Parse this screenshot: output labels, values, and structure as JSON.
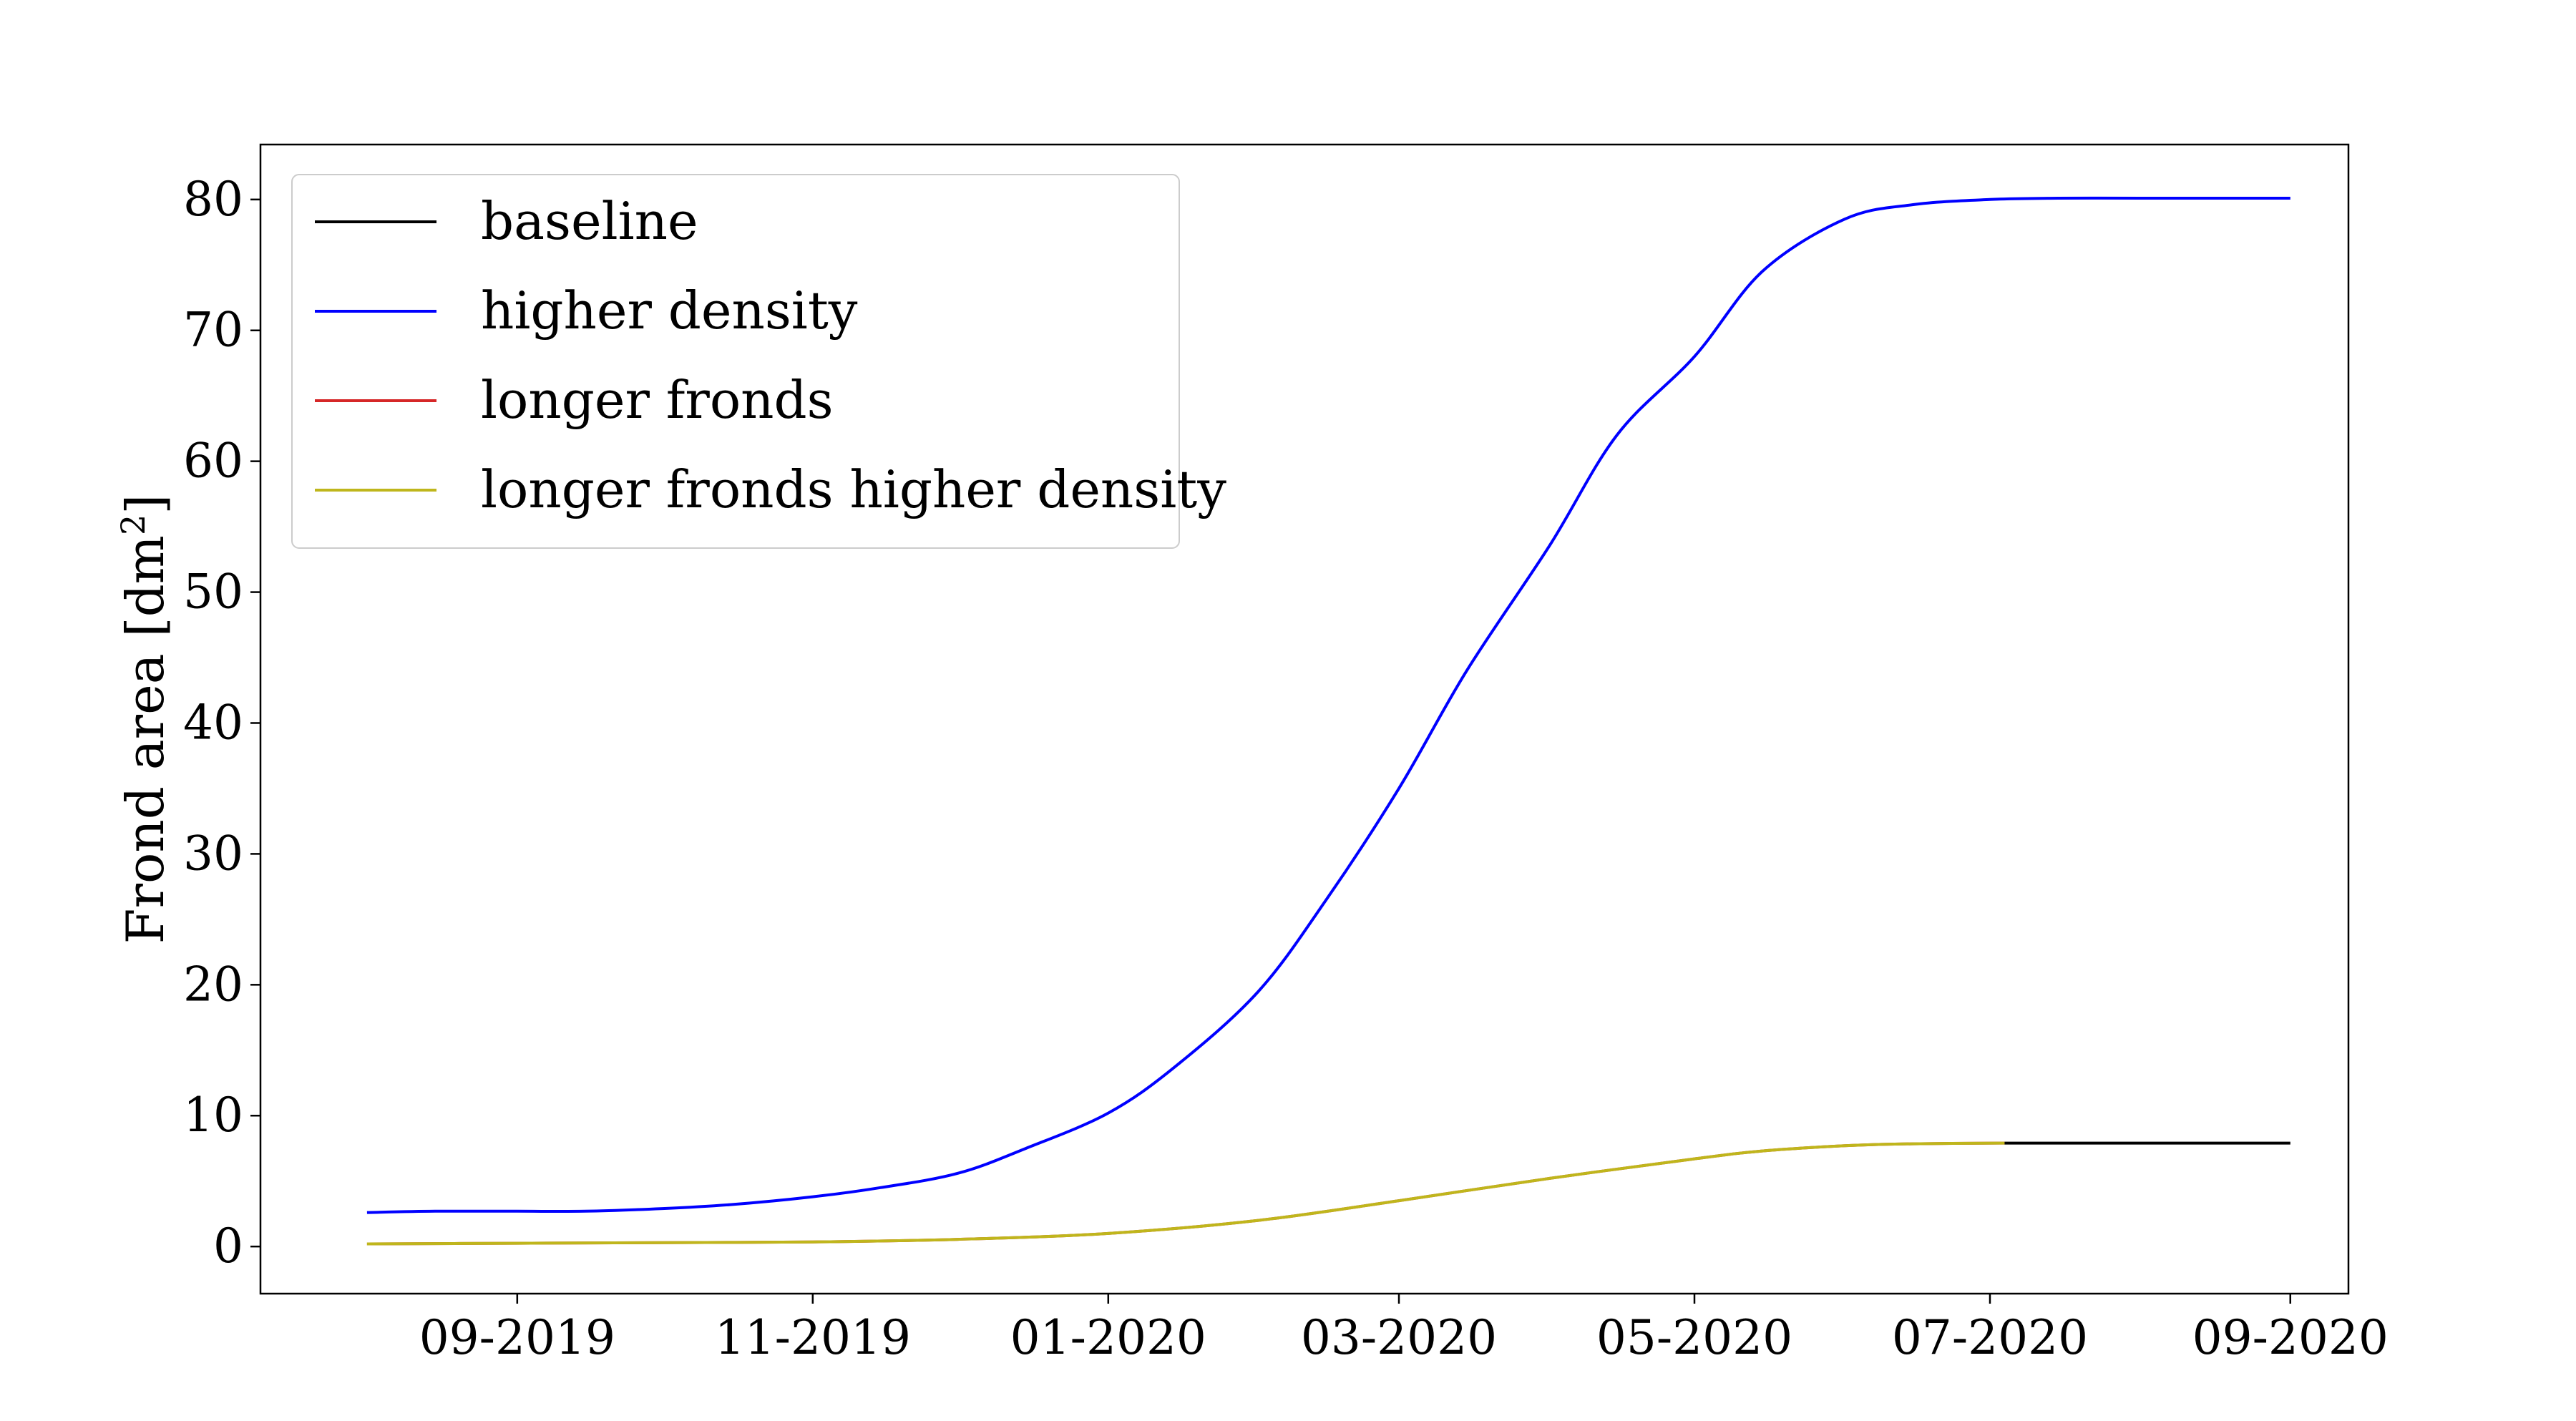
{
  "chart_data": {
    "type": "line",
    "title": "",
    "xlabel": "",
    "ylabel": "Frond area [dm",
    "ylabel_sup": "2",
    "ylabel_close": "]",
    "ylim": [
      -3.6,
      84.2
    ],
    "xlim": [
      "2019-07-10",
      "2020-09-13"
    ],
    "yticks": [
      0,
      10,
      20,
      30,
      40,
      50,
      60,
      70,
      80
    ],
    "xticks": [
      {
        "date": "2019-09-01",
        "label": "09-2019"
      },
      {
        "date": "2019-11-01",
        "label": "11-2019"
      },
      {
        "date": "2020-01-01",
        "label": "01-2020"
      },
      {
        "date": "2020-03-01",
        "label": "03-2020"
      },
      {
        "date": "2020-05-01",
        "label": "05-2020"
      },
      {
        "date": "2020-07-01",
        "label": "07-2020"
      },
      {
        "date": "2020-09-01",
        "label": "09-2020"
      }
    ],
    "grid": false,
    "legend_position": "upper-left",
    "series": [
      {
        "name": "baseline",
        "color": "#000000",
        "points": [
          [
            "2020-07-04",
            7.9
          ],
          [
            "2020-09-01",
            7.9
          ]
        ]
      },
      {
        "name": "higher density",
        "color": "#0000ff",
        "points": [
          [
            "2019-08-01",
            2.6
          ],
          [
            "2019-08-15",
            2.7
          ],
          [
            "2019-09-01",
            2.7
          ],
          [
            "2019-09-15",
            2.7
          ],
          [
            "2019-10-01",
            2.9
          ],
          [
            "2019-10-15",
            3.2
          ],
          [
            "2019-11-01",
            3.8
          ],
          [
            "2019-11-15",
            4.5
          ],
          [
            "2019-12-01",
            5.6
          ],
          [
            "2019-12-15",
            7.5
          ],
          [
            "2020-01-01",
            10.2
          ],
          [
            "2020-01-15",
            13.8
          ],
          [
            "2020-02-01",
            19.5
          ],
          [
            "2020-02-15",
            26.5
          ],
          [
            "2020-03-01",
            35.0
          ],
          [
            "2020-03-15",
            44.0
          ],
          [
            "2020-04-01",
            53.5
          ],
          [
            "2020-04-15",
            62.0
          ],
          [
            "2020-05-01",
            68.0
          ],
          [
            "2020-05-15",
            74.5
          ],
          [
            "2020-06-01",
            78.5
          ],
          [
            "2020-06-15",
            79.6
          ],
          [
            "2020-07-01",
            80.0
          ],
          [
            "2020-07-15",
            80.1
          ],
          [
            "2020-08-01",
            80.1
          ],
          [
            "2020-08-15",
            80.1
          ],
          [
            "2020-09-01",
            80.1
          ]
        ]
      },
      {
        "name": "longer fronds",
        "color": "#d62728",
        "points": [
          [
            "2019-08-01",
            0.2
          ],
          [
            "2019-09-01",
            0.25
          ],
          [
            "2019-10-01",
            0.3
          ],
          [
            "2019-11-01",
            0.35
          ],
          [
            "2019-12-01",
            0.55
          ],
          [
            "2020-01-01",
            1.0
          ],
          [
            "2020-02-01",
            2.0
          ],
          [
            "2020-03-01",
            3.5
          ],
          [
            "2020-04-01",
            5.2
          ],
          [
            "2020-05-01",
            6.7
          ],
          [
            "2020-05-15",
            7.3
          ],
          [
            "2020-06-01",
            7.7
          ],
          [
            "2020-06-15",
            7.85
          ],
          [
            "2020-07-04",
            7.9
          ]
        ]
      },
      {
        "name": "longer fronds higher density",
        "color": "#bfb61c",
        "points": [
          [
            "2019-08-01",
            0.2
          ],
          [
            "2019-09-01",
            0.25
          ],
          [
            "2019-10-01",
            0.3
          ],
          [
            "2019-11-01",
            0.35
          ],
          [
            "2019-12-01",
            0.55
          ],
          [
            "2020-01-01",
            1.0
          ],
          [
            "2020-02-01",
            2.0
          ],
          [
            "2020-03-01",
            3.5
          ],
          [
            "2020-04-01",
            5.2
          ],
          [
            "2020-05-01",
            6.7
          ],
          [
            "2020-05-15",
            7.3
          ],
          [
            "2020-06-01",
            7.7
          ],
          [
            "2020-06-15",
            7.85
          ],
          [
            "2020-07-04",
            7.9
          ]
        ]
      }
    ]
  }
}
